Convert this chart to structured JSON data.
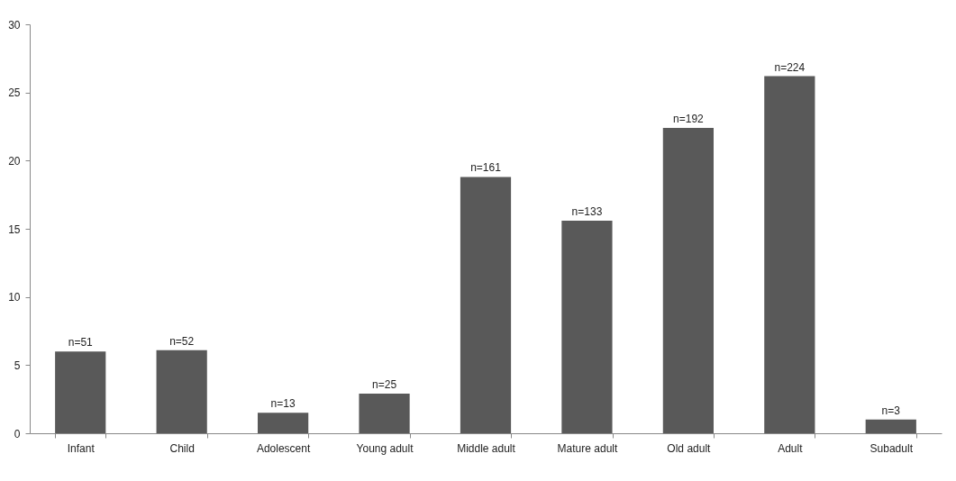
{
  "chart_data": {
    "type": "bar",
    "categories": [
      "Infant",
      "Child",
      "Adolescent",
      "Young adult",
      "Middle adult",
      "Mature adult",
      "Old adult",
      "Adult",
      "Subadult"
    ],
    "values": [
      6.0,
      6.1,
      1.5,
      2.9,
      18.8,
      15.6,
      22.4,
      26.2,
      1.0
    ],
    "color": "#595959",
    "ylim": [
      0,
      30
    ],
    "yticks": [
      0,
      5,
      10,
      15,
      20,
      25,
      30
    ],
    "grid": false,
    "annotations": [
      {
        "text": "n=51",
        "x": "Infant",
        "y": 6.0
      },
      {
        "text": "n=52",
        "x": "Child",
        "y": 6.1
      },
      {
        "text": "n=13",
        "x": "Adolescent",
        "y": 1.5
      },
      {
        "text": "n=25",
        "x": "Young adult",
        "y": 2.9
      },
      {
        "text": "n=161",
        "x": "Middle adult",
        "y": 18.8
      },
      {
        "text": "n=133",
        "x": "Mature adult",
        "y": 15.6
      },
      {
        "text": "n=192",
        "x": "Old adult",
        "y": 22.4
      },
      {
        "text": "n=224",
        "x": "Adult",
        "y": 26.2
      },
      {
        "text": "n=3",
        "x": "Subadult",
        "y": 1.0
      }
    ]
  }
}
